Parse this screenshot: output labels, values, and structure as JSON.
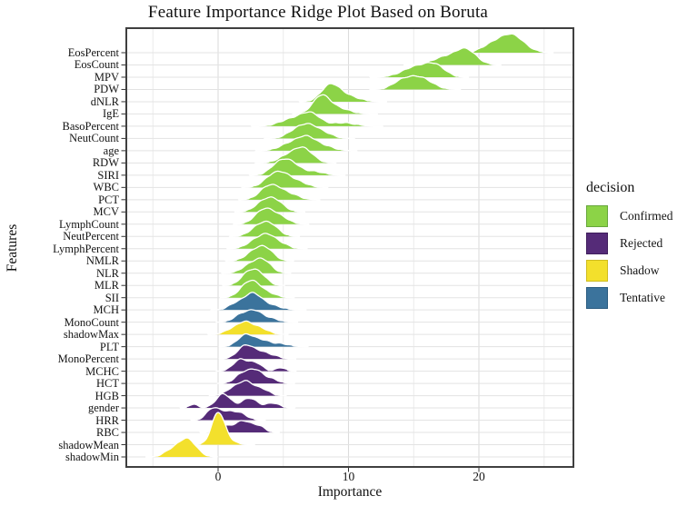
{
  "title": "Feature Importance Ridge Plot Based on Boruta",
  "x_axis": {
    "title": "Importance",
    "tick_labels": [
      "0",
      "10",
      "20"
    ],
    "tick_values": [
      0,
      10,
      20
    ],
    "minor_gridlines": [
      -5,
      5,
      15,
      25
    ],
    "range": [
      -7,
      27.2
    ]
  },
  "y_axis": {
    "title": "Features"
  },
  "legend": {
    "title": "decision",
    "items": [
      {
        "label": "Confirmed",
        "color": "#8CD347",
        "border": "#67A63B"
      },
      {
        "label": "Rejected",
        "color": "#552B78",
        "border": "#3F1E5C"
      },
      {
        "label": "Shadow",
        "color": "#F3E02C",
        "border": "#CFBC1F"
      },
      {
        "label": "Tentative",
        "color": "#3B739C",
        "border": "#2A5B80"
      }
    ]
  },
  "colors": {
    "Confirmed": "#8CD347",
    "Rejected": "#552B78",
    "Shadow": "#F3E02C",
    "Tentative": "#3B739C",
    "ridge_outline": "#ffffff",
    "grid_major": "#DCDCDC",
    "grid_minor": "#ECECEC",
    "grid_row": "#E3E3E3",
    "panel_border": "#3F3F3F",
    "tick": "#333333"
  },
  "chart_data": {
    "type": "ridgeline",
    "x_unit": "Importance",
    "features": [
      {
        "name": "EosPercent",
        "decision": "Confirmed",
        "peak_importance": 22.5,
        "components": [
          [
            22.5,
            0.95,
            1.45
          ],
          [
            20.9,
            0.8,
            0.5
          ]
        ]
      },
      {
        "name": "EosCount",
        "decision": "Confirmed",
        "peak_importance": 19.0,
        "components": [
          [
            19.0,
            0.8,
            1.25
          ],
          [
            17.3,
            0.9,
            0.6
          ]
        ]
      },
      {
        "name": "MPV",
        "decision": "Confirmed",
        "peak_importance": 16.0,
        "components": [
          [
            16.7,
            0.75,
            0.8
          ],
          [
            15.2,
            1.05,
            0.85
          ]
        ]
      },
      {
        "name": "PDW",
        "decision": "Confirmed",
        "peak_importance": 15.4,
        "components": [
          [
            15.4,
            0.95,
            1.0
          ],
          [
            14.0,
            0.7,
            0.5
          ]
        ]
      },
      {
        "name": "dNLR",
        "decision": "Confirmed",
        "peak_importance": 8.6,
        "components": [
          [
            8.6,
            0.7,
            1.3
          ],
          [
            9.9,
            0.9,
            0.45
          ]
        ]
      },
      {
        "name": "IgE",
        "decision": "Confirmed",
        "peak_importance": 7.9,
        "components": [
          [
            7.9,
            0.65,
            1.4
          ],
          [
            9.2,
            0.9,
            0.45
          ]
        ]
      },
      {
        "name": "BasoPercent",
        "decision": "Confirmed",
        "peak_importance": 7.1,
        "components": [
          [
            7.1,
            0.75,
            1.0
          ],
          [
            5.6,
            0.9,
            0.55
          ],
          [
            9.6,
            0.9,
            0.28
          ]
        ]
      },
      {
        "name": "NeutCount",
        "decision": "Confirmed",
        "peak_importance": 7.0,
        "components": [
          [
            7.0,
            0.75,
            1.0
          ],
          [
            5.9,
            0.7,
            0.5
          ],
          [
            8.3,
            0.65,
            0.3
          ]
        ]
      },
      {
        "name": "age",
        "decision": "Confirmed",
        "peak_importance": 6.8,
        "components": [
          [
            6.8,
            0.75,
            1.1
          ],
          [
            5.4,
            0.75,
            0.5
          ],
          [
            8.3,
            0.7,
            0.3
          ]
        ]
      },
      {
        "name": "RDW",
        "decision": "Confirmed",
        "peak_importance": 6.5,
        "components": [
          [
            6.5,
            0.75,
            1.2
          ],
          [
            5.2,
            0.7,
            0.45
          ]
        ]
      },
      {
        "name": "SIRI",
        "decision": "Confirmed",
        "peak_importance": 5.6,
        "components": [
          [
            5.6,
            0.7,
            0.95
          ],
          [
            4.6,
            0.65,
            0.8
          ],
          [
            7.4,
            0.7,
            0.3
          ]
        ]
      },
      {
        "name": "WBC",
        "decision": "Confirmed",
        "peak_importance": 5.0,
        "components": [
          [
            5.0,
            0.75,
            1.05
          ],
          [
            4.0,
            0.65,
            0.6
          ],
          [
            6.4,
            0.6,
            0.3
          ]
        ]
      },
      {
        "name": "PCT",
        "decision": "Confirmed",
        "peak_importance": 4.5,
        "components": [
          [
            4.5,
            0.7,
            0.9
          ],
          [
            3.6,
            0.6,
            0.65
          ],
          [
            5.8,
            0.6,
            0.3
          ]
        ]
      },
      {
        "name": "MCV",
        "decision": "Confirmed",
        "peak_importance": 4.3,
        "components": [
          [
            4.3,
            0.7,
            1.0
          ],
          [
            3.3,
            0.6,
            0.55
          ]
        ]
      },
      {
        "name": "LymphCount",
        "decision": "Confirmed",
        "peak_importance": 4.0,
        "components": [
          [
            4.0,
            0.7,
            0.95
          ],
          [
            3.2,
            0.6,
            0.6
          ],
          [
            5.1,
            0.55,
            0.3
          ]
        ]
      },
      {
        "name": "NeutPercent",
        "decision": "Confirmed",
        "peak_importance": 3.9,
        "components": [
          [
            3.9,
            0.7,
            1.05
          ],
          [
            2.9,
            0.6,
            0.5
          ]
        ]
      },
      {
        "name": "LymphPercent",
        "decision": "Confirmed",
        "peak_importance": 3.8,
        "components": [
          [
            3.8,
            0.65,
            1.1
          ],
          [
            2.7,
            0.6,
            0.5
          ],
          [
            5.0,
            0.55,
            0.28
          ]
        ]
      },
      {
        "name": "NMLR",
        "decision": "Confirmed",
        "peak_importance": 3.6,
        "components": [
          [
            3.6,
            0.65,
            1.05
          ],
          [
            2.6,
            0.6,
            0.55
          ]
        ]
      },
      {
        "name": "NLR",
        "decision": "Confirmed",
        "peak_importance": 3.4,
        "components": [
          [
            3.4,
            0.65,
            1.1
          ],
          [
            2.3,
            0.6,
            0.5
          ]
        ]
      },
      {
        "name": "MLR",
        "decision": "Confirmed",
        "peak_importance": 3.1,
        "components": [
          [
            3.1,
            0.6,
            1.0
          ],
          [
            2.2,
            0.55,
            0.8
          ]
        ]
      },
      {
        "name": "SII",
        "decision": "Confirmed",
        "peak_importance": 2.8,
        "components": [
          [
            2.8,
            0.6,
            1.1
          ],
          [
            2.0,
            0.55,
            0.65
          ],
          [
            4.0,
            0.55,
            0.3
          ]
        ]
      },
      {
        "name": "MCH",
        "decision": "Tentative",
        "peak_importance": 2.6,
        "components": [
          [
            2.6,
            0.65,
            1.25
          ],
          [
            3.9,
            0.85,
            0.4
          ],
          [
            1.3,
            0.55,
            0.45
          ]
        ]
      },
      {
        "name": "MonoCount",
        "decision": "Tentative",
        "peak_importance": 2.8,
        "components": [
          [
            2.8,
            0.6,
            0.9
          ],
          [
            1.7,
            0.55,
            0.55
          ],
          [
            4.1,
            0.6,
            0.28
          ]
        ]
      },
      {
        "name": "shadowMax",
        "decision": "Shadow",
        "peak_importance": 2.0,
        "components": [
          [
            2.0,
            0.6,
            0.95
          ],
          [
            3.2,
            0.65,
            0.5
          ],
          [
            0.9,
            0.5,
            0.3
          ]
        ]
      },
      {
        "name": "PLT",
        "decision": "Tentative",
        "peak_importance": 2.1,
        "components": [
          [
            2.1,
            0.6,
            0.95
          ],
          [
            3.4,
            0.65,
            0.5
          ],
          [
            4.9,
            0.6,
            0.22
          ]
        ]
      },
      {
        "name": "MonoPercent",
        "decision": "Rejected",
        "peak_importance": 2.1,
        "components": [
          [
            2.1,
            0.6,
            1.1
          ],
          [
            3.3,
            0.55,
            0.5
          ],
          [
            4.3,
            0.5,
            0.22
          ]
        ]
      },
      {
        "name": "MCHC",
        "decision": "Rejected",
        "peak_importance": 1.7,
        "components": [
          [
            1.7,
            0.55,
            0.95
          ],
          [
            2.9,
            0.5,
            0.65
          ],
          [
            4.8,
            0.35,
            0.3
          ]
        ]
      },
      {
        "name": "HCT",
        "decision": "Rejected",
        "peak_importance": 2.9,
        "components": [
          [
            2.9,
            0.6,
            1.05
          ],
          [
            1.8,
            0.55,
            0.7
          ],
          [
            4.2,
            0.5,
            0.3
          ]
        ]
      },
      {
        "name": "HGB",
        "decision": "Rejected",
        "peak_importance": 2.1,
        "components": [
          [
            2.1,
            0.6,
            1.15
          ],
          [
            3.4,
            0.55,
            0.5
          ],
          [
            1.0,
            0.5,
            0.45
          ]
        ]
      },
      {
        "name": "gender",
        "decision": "Rejected",
        "peak_importance": 0.4,
        "components": [
          [
            0.4,
            0.55,
            1.15
          ],
          [
            2.4,
            0.6,
            0.8
          ],
          [
            4.2,
            0.5,
            0.4
          ],
          [
            -1.9,
            0.3,
            0.32
          ]
        ]
      },
      {
        "name": "HRR",
        "decision": "Rejected",
        "peak_importance": -0.4,
        "components": [
          [
            -0.4,
            0.5,
            0.95
          ],
          [
            1.6,
            0.6,
            0.6
          ],
          [
            0.6,
            0.5,
            0.5
          ]
        ]
      },
      {
        "name": "RBC",
        "decision": "Rejected",
        "peak_importance": 1.9,
        "components": [
          [
            1.9,
            0.7,
            0.95
          ],
          [
            0.3,
            0.5,
            0.5
          ],
          [
            3.2,
            0.45,
            0.4
          ]
        ]
      },
      {
        "name": "shadowMean",
        "decision": "Shadow",
        "peak_importance": 0.0,
        "components": [
          [
            0.0,
            0.5,
            2.55
          ],
          [
            0.8,
            0.6,
            0.25
          ]
        ]
      },
      {
        "name": "shadowMin",
        "decision": "Shadow",
        "peak_importance": -2.4,
        "components": [
          [
            -2.4,
            0.7,
            1.5
          ],
          [
            -3.7,
            0.55,
            0.4
          ]
        ]
      }
    ]
  }
}
